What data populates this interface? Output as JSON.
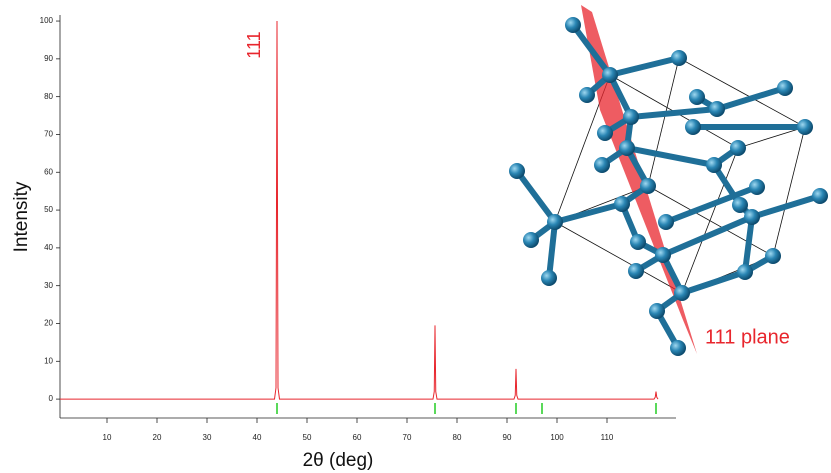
{
  "chart_data": {
    "type": "line",
    "x_label": "2θ (deg)",
    "y_label": "Intensity",
    "x": [
      0.6,
      43.5,
      43.8,
      44.0,
      44.2,
      44.5,
      75.2,
      75.45,
      75.6,
      75.75,
      76.0,
      91.4,
      91.65,
      91.8,
      91.95,
      92.2,
      119.4,
      119.65,
      119.8,
      119.95,
      120.2
    ],
    "values": [
      0,
      0,
      3,
      100,
      3,
      0,
      0,
      2,
      19.5,
      2,
      0,
      0,
      1,
      8,
      1,
      0,
      0,
      0.5,
      2,
      0.5,
      0
    ],
    "color": "#e8262d",
    "reflections": [
      44.0,
      75.6,
      91.8,
      97.0,
      119.8
    ],
    "reflection_color": "#22cc22",
    "xlim": [
      0.6,
      123.8
    ],
    "ylim": [
      -5,
      101.6
    ],
    "xticks": [
      10,
      20,
      30,
      40,
      50,
      60,
      70,
      80,
      90,
      100,
      110
    ],
    "yticks": [
      0,
      10,
      20,
      30,
      40,
      50,
      60,
      70,
      80,
      90,
      100
    ],
    "annotations": [
      "111",
      "111 plane"
    ]
  }
}
